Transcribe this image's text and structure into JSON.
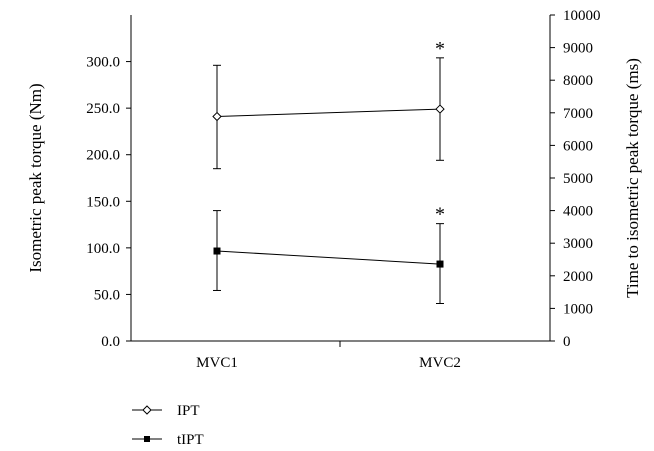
{
  "chart_data": {
    "type": "line",
    "categories": [
      "MVC1",
      "MVC2"
    ],
    "left_axis": {
      "label": "Isometric peak torque (Nm)",
      "ylim": [
        0,
        350
      ],
      "ticks": [
        "0.0",
        "50.0",
        "100.0",
        "150.0",
        "200.0",
        "250.0",
        "300.0"
      ]
    },
    "right_axis": {
      "label": "Time to isometric peak torque (ms)",
      "ylim": [
        0,
        10000
      ],
      "ticks": [
        "0",
        "1000",
        "2000",
        "3000",
        "4000",
        "5000",
        "6000",
        "7000",
        "8000",
        "9000",
        "10000"
      ]
    },
    "series": [
      {
        "name": "IPT",
        "axis": "left",
        "marker": "diamond-open",
        "values": [
          241,
          249
        ],
        "error": [
          [
            185,
            296
          ],
          [
            194,
            304
          ]
        ],
        "significance": [
          "",
          "*"
        ]
      },
      {
        "name": "tIPT",
        "axis": "right",
        "marker": "square-filled",
        "values": [
          2760,
          2360
        ],
        "error": [
          [
            1550,
            4000
          ],
          [
            1150,
            3600
          ]
        ],
        "significance": [
          "",
          "*"
        ]
      }
    ],
    "legend_position": "bottom-left",
    "grid": false
  }
}
